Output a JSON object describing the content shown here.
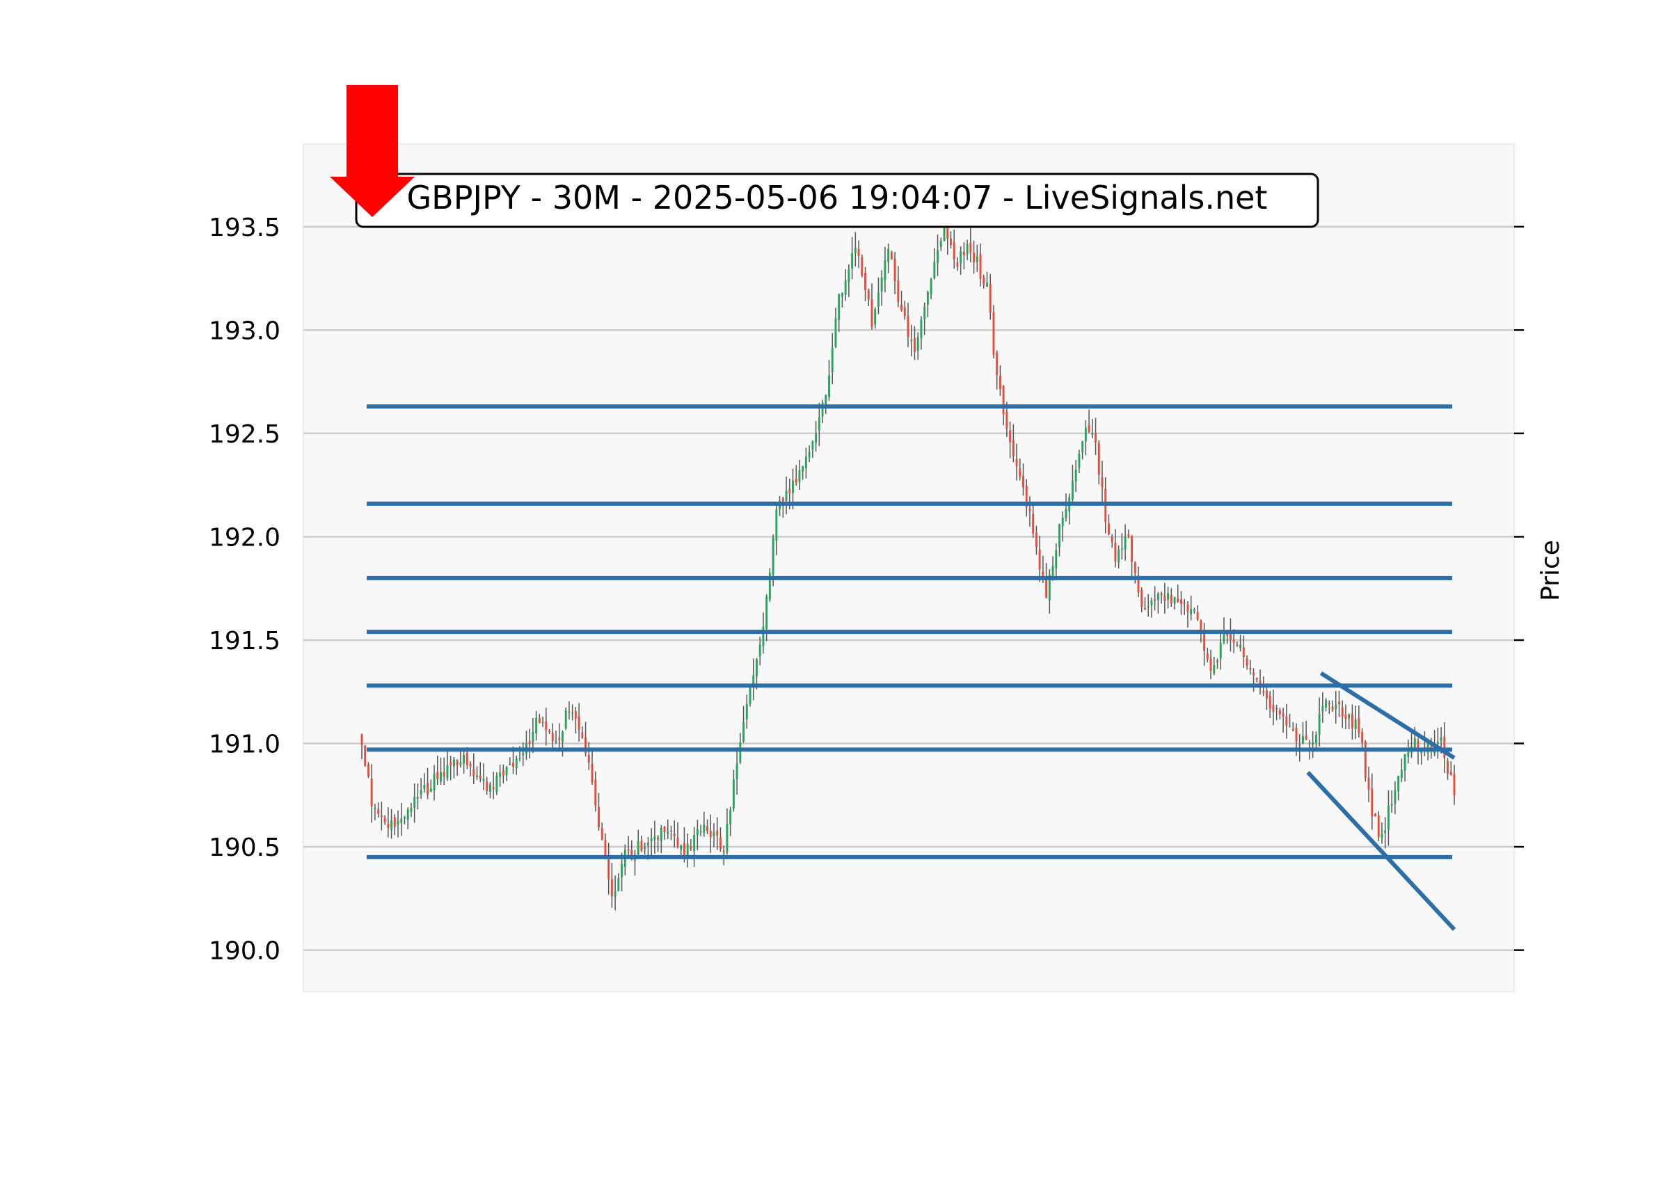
{
  "chart_data": {
    "type": "candlestick",
    "title": "GBPJPY - 30M - 2025-05-06 19:04:07 - LiveSignals.net",
    "ylabel": "Price",
    "ylim": [
      189.8,
      193.9
    ],
    "yticks": [
      "190.0",
      "190.5",
      "191.0",
      "191.5",
      "192.0",
      "192.5",
      "193.0",
      "193.5"
    ],
    "grid": "horizontal",
    "signal": "sell",
    "colors": {
      "up": "#26a65b",
      "down": "#e74c3c",
      "wick": "#555555",
      "levels": "#2b6ea8",
      "signal_arrow": "#ff0000",
      "plot_bg": "#f8f8f8"
    },
    "levels": [
      192.63,
      192.16,
      191.8,
      191.54,
      191.28,
      190.97,
      190.45
    ],
    "trendlines": [
      {
        "from": [
          0.878,
          191.34
        ],
        "to": [
          1.0,
          190.93
        ]
      },
      {
        "from": [
          0.866,
          190.86
        ],
        "to": [
          1.0,
          190.1
        ]
      }
    ],
    "anchors": [
      [
        0,
        190.98
      ],
      [
        3,
        190.72
      ],
      [
        8,
        190.58
      ],
      [
        14,
        190.68
      ],
      [
        22,
        190.82
      ],
      [
        30,
        190.93
      ],
      [
        38,
        190.78
      ],
      [
        46,
        190.88
      ],
      [
        54,
        191.12
      ],
      [
        59,
        191.0
      ],
      [
        63,
        191.18
      ],
      [
        68,
        190.98
      ],
      [
        72,
        190.62
      ],
      [
        76,
        190.25
      ],
      [
        80,
        190.45
      ],
      [
        86,
        190.52
      ],
      [
        92,
        190.58
      ],
      [
        98,
        190.48
      ],
      [
        104,
        190.6
      ],
      [
        110,
        190.48
      ],
      [
        114,
        190.9
      ],
      [
        118,
        191.25
      ],
      [
        122,
        191.55
      ],
      [
        126,
        192.12
      ],
      [
        130,
        192.22
      ],
      [
        136,
        192.42
      ],
      [
        141,
        192.68
      ],
      [
        145,
        193.15
      ],
      [
        150,
        193.4
      ],
      [
        155,
        193.05
      ],
      [
        160,
        193.38
      ],
      [
        164,
        193.1
      ],
      [
        168,
        192.9
      ],
      [
        172,
        193.2
      ],
      [
        177,
        193.5
      ],
      [
        180,
        193.32
      ],
      [
        185,
        193.4
      ],
      [
        190,
        193.2
      ],
      [
        193,
        192.75
      ],
      [
        197,
        192.48
      ],
      [
        201,
        192.25
      ],
      [
        205,
        191.95
      ],
      [
        208,
        191.72
      ],
      [
        212,
        192.05
      ],
      [
        216,
        192.25
      ],
      [
        220,
        192.55
      ],
      [
        223,
        192.45
      ],
      [
        226,
        192.1
      ],
      [
        229,
        191.88
      ],
      [
        233,
        192.0
      ],
      [
        237,
        191.65
      ],
      [
        243,
        191.7
      ],
      [
        249,
        191.68
      ],
      [
        254,
        191.6
      ],
      [
        258,
        191.32
      ],
      [
        262,
        191.55
      ],
      [
        267,
        191.48
      ],
      [
        271,
        191.3
      ],
      [
        277,
        191.18
      ],
      [
        283,
        191.05
      ],
      [
        288,
        190.98
      ],
      [
        293,
        191.2
      ],
      [
        298,
        191.15
      ],
      [
        303,
        191.08
      ],
      [
        307,
        190.65
      ],
      [
        310,
        190.55
      ],
      [
        314,
        190.8
      ],
      [
        319,
        191.0
      ],
      [
        324,
        190.98
      ],
      [
        328,
        191.02
      ],
      [
        332,
        190.75
      ]
    ]
  }
}
